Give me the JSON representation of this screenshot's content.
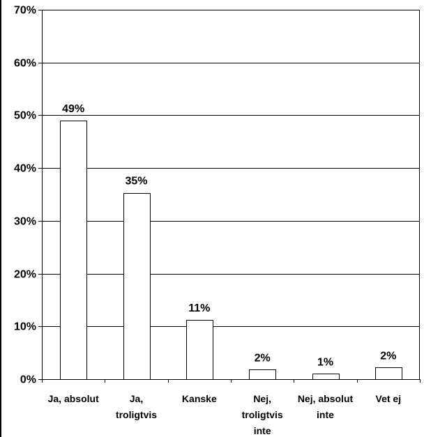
{
  "chart_data": {
    "type": "bar",
    "categories": [
      [
        "Ja, absolut"
      ],
      [
        "Ja,",
        "troligtvis"
      ],
      [
        "Kanske"
      ],
      [
        "Nej,",
        "troligtvis",
        "inte"
      ],
      [
        "Nej, absolut",
        "inte"
      ],
      [
        "Vet ej"
      ]
    ],
    "values": [
      49,
      35.3,
      11.2,
      1.8,
      1,
      2.2
    ],
    "data_labels": [
      "49%",
      "35%",
      "11%",
      "2%",
      "1%",
      "2%"
    ],
    "ylim": [
      0,
      70
    ],
    "yticks": [
      0,
      10,
      20,
      30,
      40,
      50,
      60,
      70
    ],
    "ytick_labels": [
      "0%",
      "10%",
      "20%",
      "30%",
      "40%",
      "50%",
      "60%",
      "70%"
    ],
    "grid": true,
    "colors": {
      "bar_fill": "#ffffff",
      "bar_stroke": "#000000",
      "grid": "#000000"
    }
  }
}
